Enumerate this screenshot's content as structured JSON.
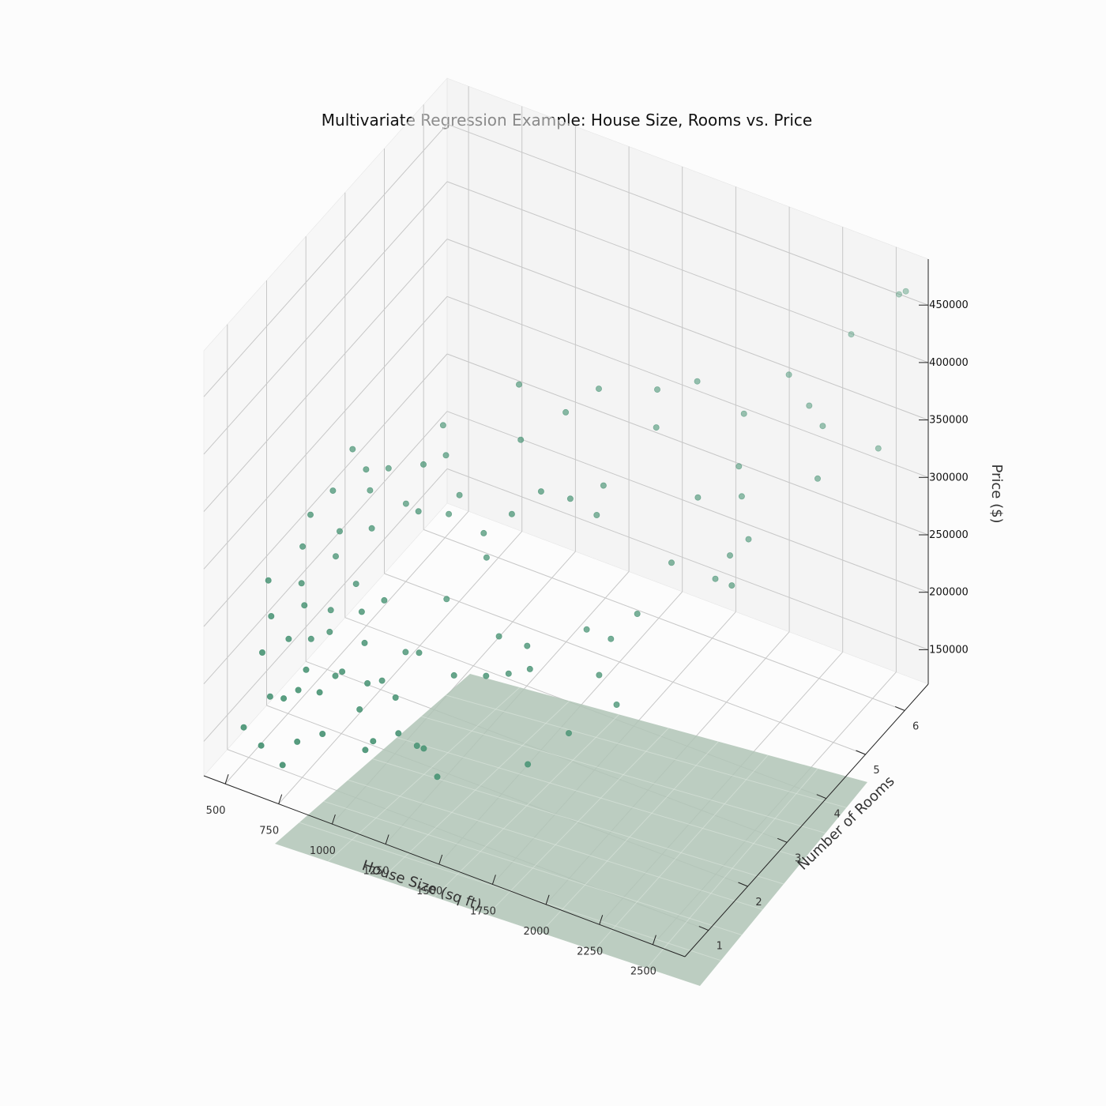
{
  "chart_data": {
    "type": "scatter",
    "title": "Multivariate Regression Example: House Size, Rooms vs. Price",
    "xlabel": "House Size (sq ft)",
    "ylabel": "Number of Rooms",
    "zlabel": "Price ($)",
    "xlim": [
      400,
      2650
    ],
    "ylim": [
      0.4,
      6.6
    ],
    "zlim": [
      120000,
      490000
    ],
    "xticks": [
      "500",
      "750",
      "1000",
      "1250",
      "1500",
      "1750",
      "2000",
      "2250",
      "2500"
    ],
    "yticks": [
      "1",
      "2",
      "3",
      "4",
      "5",
      "6"
    ],
    "zticks": [
      "150000",
      "200000",
      "250000",
      "300000",
      "350000",
      "400000",
      "450000"
    ],
    "grid": true,
    "colors": {
      "points": "#4a9475",
      "plane": "#b0c4b6",
      "grid": "#c7c7c7",
      "axis": "#222222"
    },
    "series": [
      {
        "points": [
          [
            2550,
            6.4,
            460000
          ],
          [
            2600,
            6.3,
            470000
          ],
          [
            2400,
            6.0,
            430000
          ],
          [
            2200,
            5.5,
            400000
          ],
          [
            2350,
            5.2,
            395000
          ],
          [
            2450,
            5.0,
            392000
          ],
          [
            2600,
            5.6,
            360000
          ],
          [
            2500,
            4.6,
            365000
          ],
          [
            2100,
            4.9,
            382000
          ],
          [
            2150,
            4.5,
            355000
          ],
          [
            2200,
            4.3,
            340000
          ],
          [
            2050,
            4.0,
            340000
          ],
          [
            2250,
            4.2,
            310000
          ],
          [
            2200,
            4.0,
            300000
          ],
          [
            2150,
            3.9,
            280000
          ],
          [
            2000,
            3.6,
            295000
          ],
          [
            1950,
            3.0,
            270000
          ],
          [
            1900,
            2.6,
            260000
          ],
          [
            1900,
            2.3,
            240000
          ],
          [
            2000,
            2.2,
            225000
          ],
          [
            1850,
            1.8,
            205000
          ],
          [
            1750,
            1.3,
            190000
          ],
          [
            1700,
            3.5,
            345000
          ],
          [
            1600,
            3.2,
            338000
          ],
          [
            1500,
            3.0,
            345000
          ],
          [
            1350,
            3.3,
            368000
          ],
          [
            1250,
            3.8,
            390000
          ],
          [
            1550,
            4.2,
            392000
          ],
          [
            1450,
            3.9,
            376000
          ],
          [
            1650,
            3.6,
            312000
          ],
          [
            1400,
            2.8,
            326000
          ],
          [
            1750,
            2.8,
            250000
          ],
          [
            1600,
            2.1,
            252000
          ],
          [
            1650,
            1.9,
            243000
          ],
          [
            1450,
            2.2,
            246000
          ],
          [
            1550,
            1.9,
            232000
          ],
          [
            1500,
            1.6,
            238000
          ],
          [
            1350,
            1.6,
            228000
          ],
          [
            1150,
            2.5,
            246000
          ],
          [
            1300,
            1.1,
            180000
          ],
          [
            1200,
            1.0,
            190000
          ],
          [
            1100,
            0.9,
            180000
          ],
          [
            1400,
            0.9,
            170000
          ],
          [
            1250,
            1.2,
            175000
          ],
          [
            1050,
            1.4,
            210000
          ],
          [
            1300,
            2.7,
            285000
          ],
          [
            1250,
            2.9,
            295000
          ],
          [
            1100,
            3.1,
            310000
          ],
          [
            1000,
            2.6,
            308000
          ],
          [
            950,
            3.0,
            330000
          ],
          [
            1000,
            3.3,
            330000
          ],
          [
            950,
            3.5,
            345000
          ],
          [
            1050,
            3.1,
            290000
          ],
          [
            750,
            3.2,
            305000
          ],
          [
            700,
            3.0,
            290000
          ],
          [
            850,
            3.1,
            285000
          ],
          [
            650,
            2.5,
            270000
          ],
          [
            800,
            2.1,
            250000
          ],
          [
            950,
            2.0,
            250000
          ],
          [
            900,
            1.7,
            248000
          ],
          [
            1150,
            1.2,
            210000
          ],
          [
            1000,
            1.3,
            208000
          ],
          [
            1100,
            0.7,
            180000
          ],
          [
            1000,
            1.1,
            193000
          ],
          [
            1050,
            2.0,
            212000
          ],
          [
            950,
            1.5,
            232000
          ],
          [
            1150,
            1.8,
            226000
          ],
          [
            700,
            2.0,
            224000
          ],
          [
            750,
            1.7,
            220000
          ],
          [
            800,
            2.5,
            283000
          ],
          [
            650,
            1.6,
            240000
          ],
          [
            550,
            2.3,
            285000
          ],
          [
            600,
            2.6,
            298000
          ],
          [
            700,
            2.9,
            312000
          ],
          [
            600,
            3.1,
            315000
          ],
          [
            650,
            2.4,
            252000
          ],
          [
            550,
            2.1,
            265000
          ],
          [
            900,
            1.2,
            215000
          ],
          [
            750,
            1.1,
            210000
          ],
          [
            850,
            1.3,
            204000
          ],
          [
            600,
            0.8,
            226000
          ],
          [
            650,
            1.2,
            226000
          ],
          [
            700,
            1.5,
            218000
          ],
          [
            750,
            0.9,
            200000
          ],
          [
            700,
            0.8,
            193000
          ],
          [
            600,
            1.0,
            180000
          ],
          [
            550,
            0.6,
            165000
          ],
          [
            650,
            0.5,
            160000
          ],
          [
            850,
            0.9,
            205000
          ],
          [
            800,
            0.6,
            170000
          ],
          [
            900,
            0.7,
            180000
          ],
          [
            750,
            0.5,
            150000
          ],
          [
            550,
            1.3,
            235000
          ],
          [
            500,
            1.5,
            255000
          ],
          [
            600,
            1.8,
            248000
          ],
          [
            1800,
            4.3,
            372000
          ],
          [
            1750,
            4.6,
            390000
          ],
          [
            1900,
            4.8,
            400000
          ],
          [
            2300,
            3.5,
            300000
          ]
        ]
      }
    ]
  }
}
